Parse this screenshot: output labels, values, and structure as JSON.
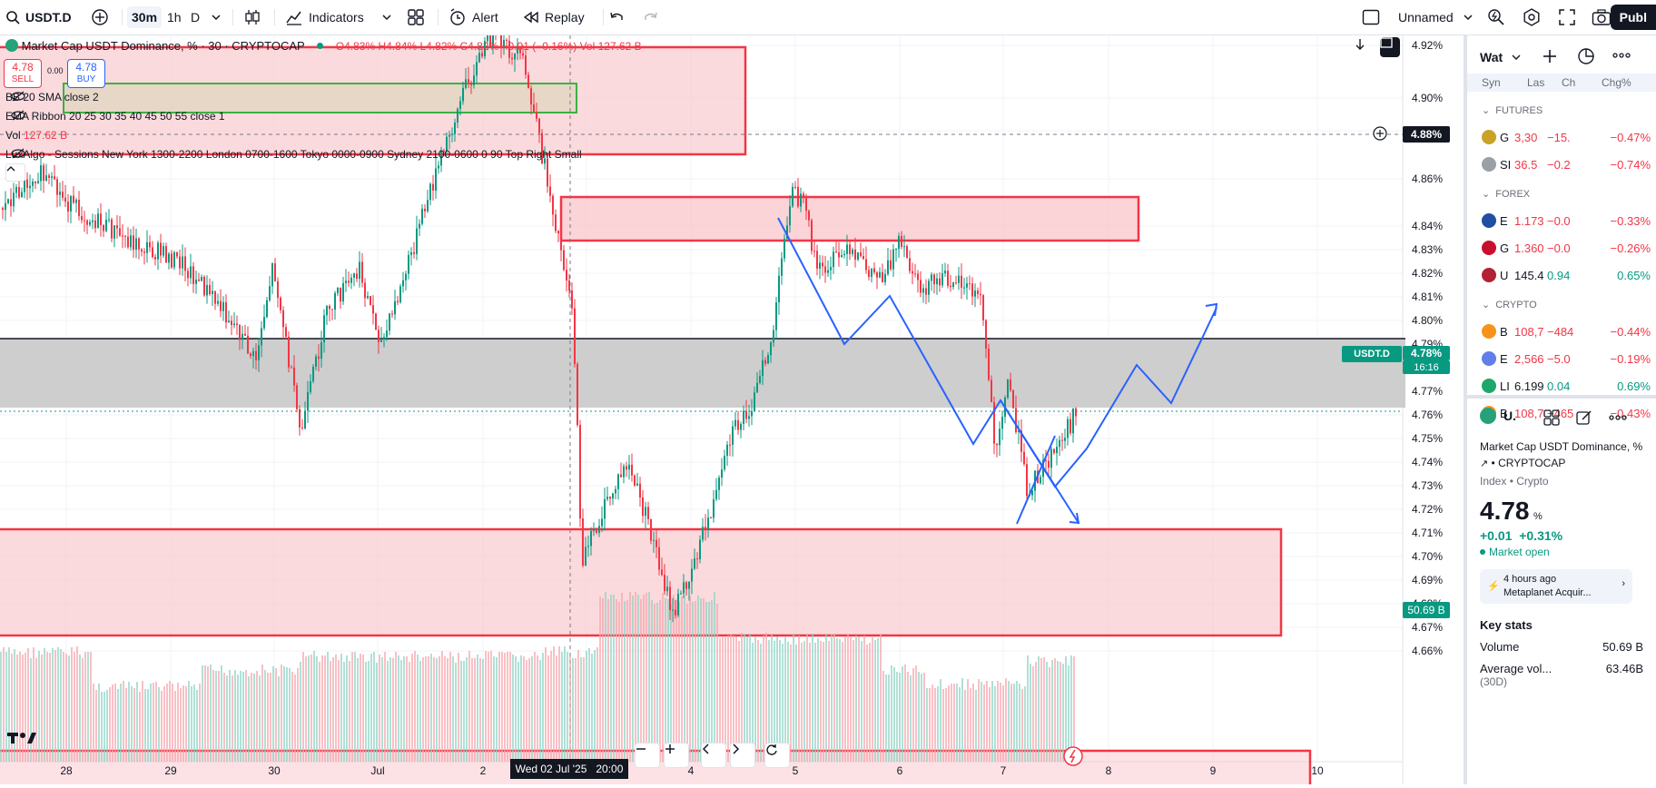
{
  "toolbar": {
    "symbol": "USDT.D",
    "intervals": [
      "30m",
      "1h",
      "D"
    ],
    "indicators_label": "Indicators",
    "alert_label": "Alert",
    "replay_label": "Replay",
    "layout_name": "Unnamed",
    "publish_label": "Publ"
  },
  "legend": {
    "title": "Market Cap USDT Dominance, % · 30 · CRYPTOCAP",
    "ohlc": "O4.83% H4.84% L4.82% C4.82% −0.01 (−0.16%) Vol 127.62 B",
    "sell_price": "4.78",
    "sell_label": "SELL",
    "spread": "0.00",
    "buy_price": "4.78",
    "buy_label": "BUY",
    "bb": "BB 20 SMA close 2",
    "ema": "EMA Ribbon 20 25 30 35 40 45 50 55 close 1",
    "vol_label": "Vol",
    "vol_value": "127.62 B",
    "sessions": "LuxAlgo - Sessions New York 1300-2200 London 0700-1600 Tokyo 0000-0900 Sydney 2100-0600 0 90 Top Right Small"
  },
  "price_axis": {
    "labels": [
      "4.92%",
      "4.90%",
      "4.88%",
      "4.86%",
      "4.84%",
      "4.83%",
      "4.82%",
      "4.81%",
      "4.80%",
      "4.79%",
      "4.77%",
      "4.76%",
      "4.75%",
      "4.74%",
      "4.73%",
      "4.72%",
      "4.71%",
      "4.70%",
      "4.69%",
      "4.68%",
      "4.67%",
      "4.66%"
    ],
    "crosshair_price": "4.88%",
    "last_symbol": "USDT.D",
    "last_price": "4.78%",
    "countdown": "16:16",
    "volume_tag": "50.69 B"
  },
  "time_axis": {
    "labels": [
      "28",
      "29",
      "30",
      "Jul",
      "2",
      "4",
      "5",
      "6",
      "7",
      "8",
      "9",
      "10"
    ],
    "crosshair_time": "Wed 02 Jul '25   20:00"
  },
  "watchlist": {
    "title": "Wat",
    "columns": [
      "Syn",
      "Las",
      "Ch",
      "Chg%"
    ],
    "sections": [
      {
        "name": "FUTURES",
        "rows": [
          {
            "sym": "G",
            "last": "3,30",
            "chg": "−15.",
            "pct": "−0.47%",
            "color": "#c9a227"
          },
          {
            "sym": "SI",
            "last": "36.5",
            "chg": "−0.2",
            "pct": "−0.74%",
            "color": "#9aa0a6"
          }
        ]
      },
      {
        "name": "FOREX",
        "rows": [
          {
            "sym": "E",
            "last": "1.173",
            "chg": "−0.0",
            "pct": "−0.33%",
            "color": "#1e4fa3"
          },
          {
            "sym": "G",
            "last": "1.360",
            "chg": "−0.0",
            "pct": "−0.26%",
            "color": "#c8102e"
          },
          {
            "sym": "U",
            "last": "145.4",
            "chg": "0.94",
            "pct": "0.65%",
            "color": "#b22234"
          }
        ]
      },
      {
        "name": "CRYPTO",
        "rows": [
          {
            "sym": "B",
            "last": "108,7",
            "chg": "−484",
            "pct": "−0.44%",
            "color": "#f7931a"
          },
          {
            "sym": "E",
            "last": "2,566",
            "chg": "−5.0",
            "pct": "−0.19%",
            "color": "#627eea"
          },
          {
            "sym": "LI",
            "last": "6.199",
            "chg": "0.04",
            "pct": "0.69%",
            "color": "#1fa66a"
          },
          {
            "sym": "B",
            "last": "108,7",
            "chg": "−465",
            "pct": "−0.43%",
            "color": "#f7931a"
          }
        ]
      }
    ]
  },
  "details": {
    "symbol_short": "U.",
    "name": "Market Cap USDT Dominance, %",
    "exchange": "CRYPTOCAP",
    "type": "Index • Crypto",
    "price": "4.78",
    "unit": "%",
    "change": "+0.01",
    "change_pct": "+0.31%",
    "market_status": "Market open",
    "news_time": "4 hours ago",
    "news_title": "Metaplanet Acquir...",
    "key_stats_title": "Key stats",
    "volume_label": "Volume",
    "volume_value": "50.69 B",
    "avg_label": "Average vol...",
    "avg_value": "63.46B",
    "avg_period": "(30D)"
  },
  "colors": {
    "up": "#089981",
    "down": "#f23645",
    "zone_red": "#f23645",
    "zone_fill": "#f9c6cb",
    "sr_band": "#c9c9c9",
    "projection": "#2962ff"
  }
}
